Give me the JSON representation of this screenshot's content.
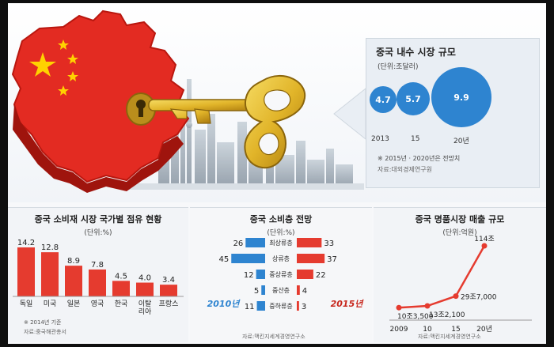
{
  "market_size": {
    "title": "중국 내수 시장 규모",
    "unit": "(단위:조달러)",
    "bubbles": [
      {
        "year": "2013",
        "value": 4.7
      },
      {
        "year": "15",
        "value": 5.7
      },
      {
        "year": "20년",
        "value": 9.9
      }
    ],
    "note": "※ 2015년 · 2020년은 전망치",
    "source": "자료:대외경제연구원"
  },
  "colors": {
    "blue": "#2e84d0",
    "red": "#e53b2f",
    "dark_red": "#c7261c",
    "gold": "#e1b429"
  },
  "chart_data": [
    {
      "type": "bar",
      "title": "중국 소비재 시장 국가별 점유 현황",
      "unit": "(단위:%)",
      "categories": [
        "독일",
        "미국",
        "일본",
        "영국",
        "한국",
        "이탈리아",
        "프랑스"
      ],
      "category_labels": [
        "독일",
        "미국",
        "일본",
        "영국",
        "한국",
        "이탈\n리아",
        "프랑스"
      ],
      "values": [
        14.2,
        12.8,
        8.9,
        7.8,
        4.5,
        4.0,
        3.4
      ],
      "note": "※ 2014년 기준",
      "source": "자료:중국해관총서"
    },
    {
      "type": "bar",
      "title": "중국 소비층 전망",
      "unit": "(단위:%)",
      "categories": [
        "최상류층",
        "상류층",
        "중상류층",
        "중산층",
        "중하류층"
      ],
      "series": [
        {
          "name": "2010년",
          "values": [
            26,
            45,
            12,
            5,
            11
          ]
        },
        {
          "name": "2015년",
          "values": [
            33,
            37,
            22,
            4,
            3
          ]
        }
      ],
      "source": "자료:맥킨지세계경영연구소"
    },
    {
      "type": "line",
      "title": "중국 명품시장 매출 규모",
      "unit": "(단위:억원)",
      "x": [
        "2009",
        "10",
        "15",
        "20년"
      ],
      "values": [
        103500,
        132100,
        297000,
        1140000
      ],
      "value_labels": [
        "10조3,500",
        "13조2,100",
        "29조7,000",
        "114조"
      ],
      "source": "자료:맥킨지세계경영연구소"
    }
  ]
}
